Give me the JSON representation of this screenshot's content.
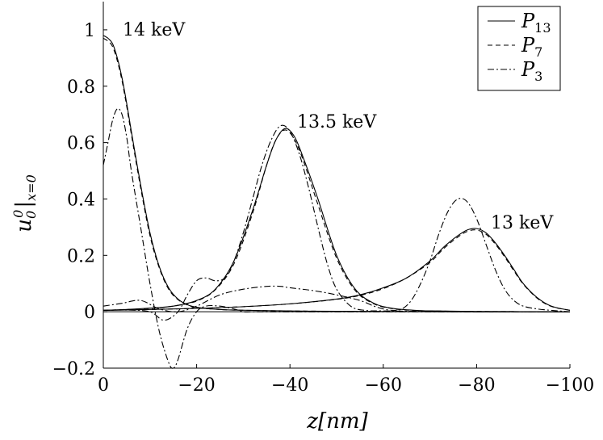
{
  "chart_data": {
    "type": "line",
    "xlabel": "z[nm]",
    "ylabel": "u_0^0|_{x=0}",
    "xlim": [
      0,
      -100
    ],
    "ylim": [
      -0.2,
      1.1
    ],
    "xticks": [
      0,
      -20,
      -40,
      -60,
      -80,
      -100
    ],
    "yticks": [
      -0.2,
      0,
      0.2,
      0.4,
      0.6,
      0.8,
      1
    ],
    "xtick_labels": [
      "0",
      "−20",
      "−40",
      "−60",
      "−80",
      "−100"
    ],
    "ytick_labels": [
      "−0.2",
      "0",
      "0.2",
      "0.4",
      "0.6",
      "0.8",
      "1"
    ],
    "grid": false,
    "legend_position": "top-right",
    "legend": [
      {
        "base": "P",
        "sub": "13",
        "style": "solid"
      },
      {
        "base": "P",
        "sub": "7",
        "style": "dashed"
      },
      {
        "base": "P",
        "sub": "3",
        "style": "dashdot"
      }
    ],
    "annotations": [
      {
        "text": "14 keV",
        "x": -4,
        "y": 0.99
      },
      {
        "text": "13.5 keV",
        "x": -42.5,
        "y": 0.66
      },
      {
        "text": "13 keV",
        "x": -82.5,
        "y": 0.3
      }
    ],
    "groups": [
      {
        "energy": "14 keV",
        "series": [
          {
            "style": "solid",
            "x": [
              0,
              -1,
              -2,
              -3,
              -4,
              -5,
              -6,
              -8,
              -10,
              -12,
              -14,
              -16,
              -18,
              -20,
              -24,
              -28,
              -35,
              -45,
              -60,
              -80,
              -100
            ],
            "y": [
              0.98,
              0.97,
              0.95,
              0.9,
              0.83,
              0.74,
              0.64,
              0.45,
              0.28,
              0.16,
              0.085,
              0.045,
              0.025,
              0.016,
              0.009,
              0.006,
              0.004,
              0.002,
              0.001,
              0.0,
              0.0
            ]
          },
          {
            "style": "dashed",
            "x": [
              0,
              -1,
              -2,
              -3,
              -4,
              -5,
              -6,
              -8,
              -10,
              -12,
              -14,
              -16,
              -18,
              -20,
              -24,
              -28,
              -35,
              -45,
              -60,
              -80,
              -100
            ],
            "y": [
              0.97,
              0.96,
              0.94,
              0.89,
              0.82,
              0.73,
              0.63,
              0.44,
              0.27,
              0.155,
              0.08,
              0.043,
              0.024,
              0.015,
              0.009,
              0.006,
              0.004,
              0.002,
              0.001,
              0.0,
              0.0
            ]
          },
          {
            "style": "dashdot",
            "x": [
              0,
              -1,
              -2,
              -3,
              -4,
              -5,
              -6,
              -8,
              -10,
              -12,
              -14,
              -15,
              -16,
              -18,
              -20,
              -22,
              -25,
              -28,
              -30,
              -32,
              -35,
              -40,
              -50,
              -60,
              -80,
              -100
            ],
            "y": [
              0.52,
              0.6,
              0.68,
              0.72,
              0.7,
              0.62,
              0.5,
              0.3,
              0.1,
              -0.07,
              -0.18,
              -0.2,
              -0.17,
              -0.06,
              0.0,
              0.02,
              0.02,
              0.01,
              0.0,
              0.0,
              0.0,
              0.0,
              0.0,
              0.0,
              0.0,
              0.0
            ]
          }
        ]
      },
      {
        "energy": "13.5 keV",
        "series": [
          {
            "style": "solid",
            "x": [
              0,
              -5,
              -10,
              -15,
              -20,
              -24,
              -28,
              -32,
              -35,
              -37,
              -39,
              -41,
              -43,
              -46,
              -50,
              -54,
              -58,
              -62,
              -66,
              -70,
              -80,
              -100
            ],
            "y": [
              0.005,
              0.008,
              0.013,
              0.02,
              0.04,
              0.08,
              0.18,
              0.36,
              0.52,
              0.61,
              0.65,
              0.62,
              0.54,
              0.4,
              0.2,
              0.08,
              0.03,
              0.012,
              0.006,
              0.003,
              0.001,
              0.0
            ]
          },
          {
            "style": "dashed",
            "x": [
              0,
              -5,
              -10,
              -15,
              -20,
              -24,
              -28,
              -32,
              -35,
              -37,
              -39,
              -41,
              -43,
              -46,
              -50,
              -54,
              -58,
              -62,
              -66,
              -70,
              -80,
              -100
            ],
            "y": [
              0.005,
              0.008,
              0.012,
              0.02,
              0.038,
              0.078,
              0.17,
              0.35,
              0.52,
              0.61,
              0.645,
              0.61,
              0.53,
              0.38,
              0.19,
              0.075,
              0.028,
              0.011,
              0.005,
              0.003,
              0.001,
              0.0
            ]
          },
          {
            "style": "dashdot",
            "x": [
              0,
              -5,
              -10,
              -13,
              -16,
              -18,
              -20,
              -22,
              -24,
              -26,
              -28,
              -30,
              -32,
              -34,
              -36,
              -38,
              -40,
              -42,
              -44,
              -46,
              -48,
              -50,
              -53,
              -56,
              -60,
              -65,
              -70,
              -80,
              -100
            ],
            "y": [
              0.005,
              0.006,
              0.0,
              -0.03,
              0.0,
              0.06,
              0.11,
              0.12,
              0.11,
              0.12,
              0.18,
              0.28,
              0.4,
              0.52,
              0.61,
              0.66,
              0.64,
              0.56,
              0.44,
              0.3,
              0.17,
              0.08,
              0.02,
              0.005,
              0.003,
              0.002,
              0.001,
              0.0,
              0.0
            ]
          }
        ]
      },
      {
        "energy": "13 keV",
        "series": [
          {
            "style": "solid",
            "x": [
              0,
              -10,
              -20,
              -30,
              -40,
              -50,
              -55,
              -60,
              -65,
              -70,
              -73,
              -76,
              -78,
              -80,
              -82,
              -84,
              -86,
              -88,
              -90,
              -93,
              -96,
              -100
            ],
            "y": [
              0.005,
              0.008,
              0.012,
              0.018,
              0.028,
              0.045,
              0.06,
              0.085,
              0.12,
              0.18,
              0.23,
              0.27,
              0.29,
              0.295,
              0.28,
              0.245,
              0.2,
              0.15,
              0.1,
              0.05,
              0.02,
              0.005
            ]
          },
          {
            "style": "dashed",
            "x": [
              0,
              -10,
              -20,
              -30,
              -40,
              -50,
              -55,
              -60,
              -65,
              -70,
              -73,
              -76,
              -78,
              -80,
              -82,
              -84,
              -86,
              -88,
              -90,
              -93,
              -96,
              -100
            ],
            "y": [
              0.005,
              0.008,
              0.012,
              0.018,
              0.028,
              0.044,
              0.058,
              0.082,
              0.12,
              0.175,
              0.225,
              0.265,
              0.285,
              0.29,
              0.275,
              0.24,
              0.195,
              0.145,
              0.098,
              0.048,
              0.019,
              0.005
            ]
          },
          {
            "style": "dashdot",
            "x": [
              0,
              -4,
              -8,
              -12,
              -16,
              -20,
              -25,
              -30,
              -35,
              -38,
              -40,
              -45,
              -50,
              -55,
              -58,
              -60,
              -62,
              -64,
              -66,
              -68,
              -70,
              -72,
              -74,
              -76,
              -78,
              -80,
              -82,
              -84,
              -86,
              -88,
              -90,
              -93,
              -96,
              -100
            ],
            "y": [
              0.02,
              0.03,
              0.04,
              0.01,
              0.0,
              0.02,
              0.06,
              0.08,
              0.09,
              0.09,
              0.085,
              0.075,
              0.06,
              0.04,
              0.02,
              0.01,
              0.005,
              0.01,
              0.04,
              0.1,
              0.18,
              0.28,
              0.36,
              0.4,
              0.39,
              0.33,
              0.24,
              0.15,
              0.08,
              0.04,
              0.02,
              0.01,
              0.005,
              0.0
            ]
          }
        ]
      }
    ]
  }
}
